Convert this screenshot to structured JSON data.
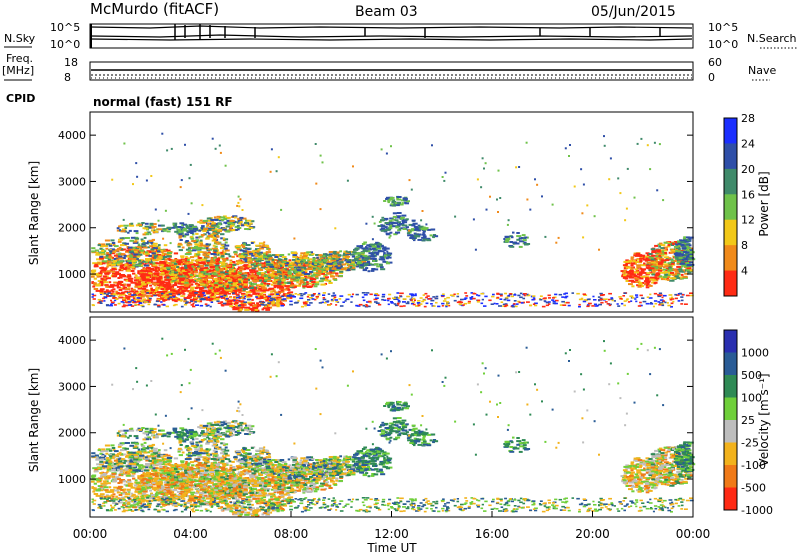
{
  "header": {
    "station": "McMurdo (fitACF)",
    "beam": "Beam 03",
    "date": "05/Jun/2015"
  },
  "strip_panels": {
    "nsky_label": "N.Sky",
    "nsearch_label": "N.Search",
    "nsky_ticks": [
      "10^5",
      "10^0"
    ],
    "nsearch_ticks": [
      "10^5",
      "10^0"
    ],
    "freq_label_top": "Freq.",
    "freq_label_unit": "[MHz]",
    "freq_ticks": [
      "18",
      "8"
    ],
    "nave_label": "Nave",
    "nave_ticks": [
      "60",
      "0"
    ],
    "cpid_label": "CPID",
    "cpid_value": "normal (fast) 151 RF"
  },
  "chart_data": [
    {
      "type": "heatmap",
      "title": "",
      "ylabel": "Slant Range [km]",
      "xlabel": "",
      "colorbar_label": "Power [dB]",
      "colorbar_ticks": [
        "4",
        "8",
        "12",
        "16",
        "20",
        "24",
        "28"
      ],
      "colors": [
        "#1b2fff",
        "#2f4fa8",
        "#3f8a6a",
        "#6fc24a",
        "#f2c818",
        "#f08a1a",
        "#ff2b14"
      ],
      "ylim": [
        180,
        4500
      ],
      "yticks": [
        "1000",
        "2000",
        "3000",
        "4000"
      ],
      "xlim": [
        "00:00",
        "24:00"
      ]
    },
    {
      "type": "heatmap",
      "title": "",
      "ylabel": "Slant Range [km]",
      "xlabel": "Time UT",
      "colorbar_label": "Velocity [m s⁻¹]",
      "colorbar_ticks": [
        "1000",
        "500",
        "100",
        "25",
        "-25",
        "-100",
        "-500",
        "-1000"
      ],
      "colors": [
        "#2a2fb0",
        "#2a5c96",
        "#2f8a55",
        "#6fcf3a",
        "#bdbdbd",
        "#f2b21c",
        "#f07a18",
        "#ff2a14"
      ],
      "ylim": [
        180,
        4500
      ],
      "yticks": [
        "1000",
        "2000",
        "3000",
        "4000"
      ],
      "xticks": [
        "00:00",
        "04:00",
        "08:00",
        "12:00",
        "16:00",
        "20:00",
        "00:00"
      ],
      "xlim": [
        "00:00",
        "24:00"
      ]
    }
  ]
}
